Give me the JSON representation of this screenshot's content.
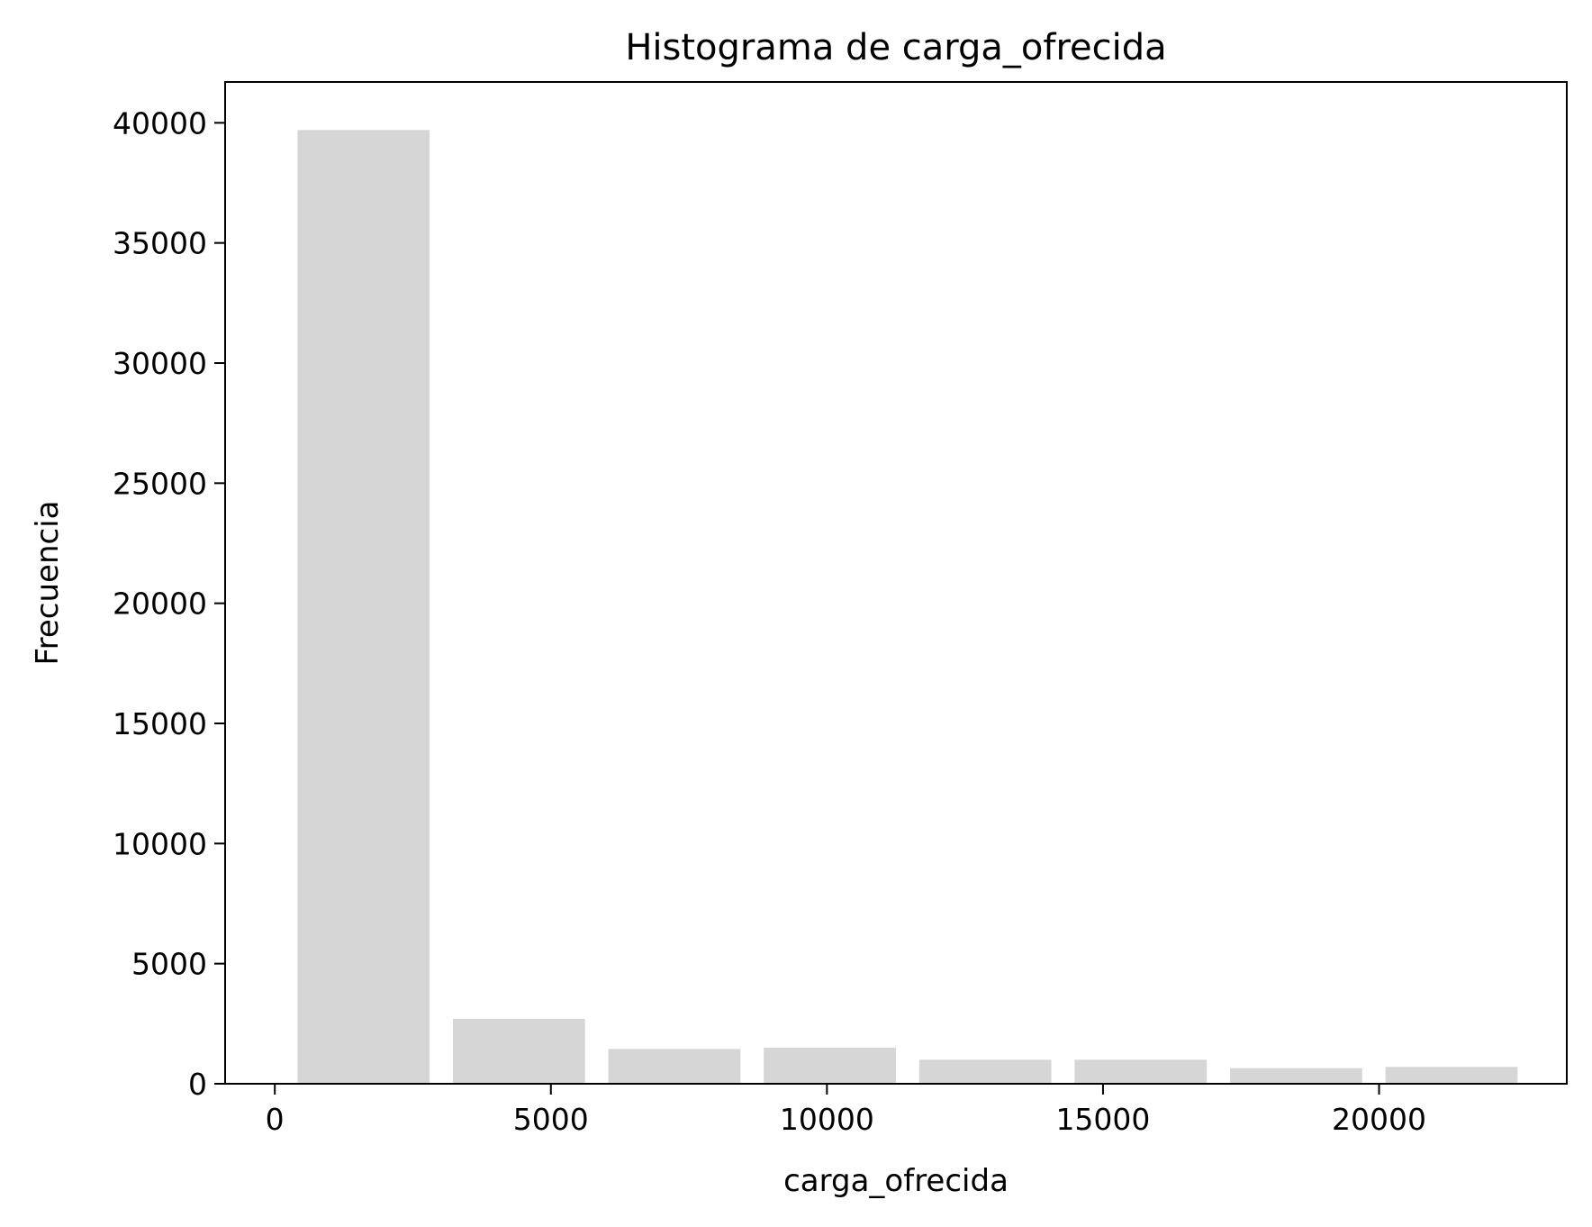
{
  "chart_data": {
    "type": "bar",
    "title": "Histograma de carga_ofrecida",
    "xlabel": "carga_ofrecida",
    "ylabel": "Frecuencia",
    "xlim": [
      -900,
      23400
    ],
    "ylim": [
      0,
      41700
    ],
    "x_ticks": [
      0,
      5000,
      10000,
      15000,
      20000
    ],
    "y_ticks": [
      0,
      5000,
      10000,
      15000,
      20000,
      25000,
      30000,
      35000,
      40000
    ],
    "bin_edges": [
      200,
      3015,
      5830,
      8645,
      11460,
      14275,
      17090,
      19905,
      22720
    ],
    "bar_width_fraction": 0.85,
    "values": [
      39700,
      2700,
      1450,
      1500,
      1000,
      1000,
      650,
      700
    ],
    "grid": false,
    "bar_color": "#d6d6d6"
  }
}
